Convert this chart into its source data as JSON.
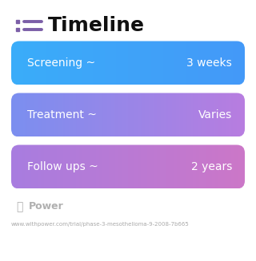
{
  "title": "Timeline",
  "title_fontsize": 18,
  "title_color": "#111111",
  "icon_color": "#7b5ea7",
  "bg_color": "#ffffff",
  "rows": [
    {
      "label": "Screening ~",
      "value": "3 weeks",
      "color_left": "#3aadfa",
      "color_right": "#4499f8"
    },
    {
      "label": "Treatment ~",
      "value": "Varies",
      "color_left": "#7b8ff0",
      "color_right": "#b87de0"
    },
    {
      "label": "Follow ups ~",
      "value": "2 years",
      "color_left": "#a87de0",
      "color_right": "#cc77c8"
    }
  ],
  "text_color": "#ffffff",
  "label_fontsize": 10,
  "value_fontsize": 10,
  "footer_logo_text": "Power",
  "footer_url": "www.withpower.com/trial/phase-3-mesothelioma-9-2008-7b665",
  "footer_fontsize": 5.0,
  "footer_color": "#aaaaaa",
  "footer_logo_color": "#b0b0b0"
}
